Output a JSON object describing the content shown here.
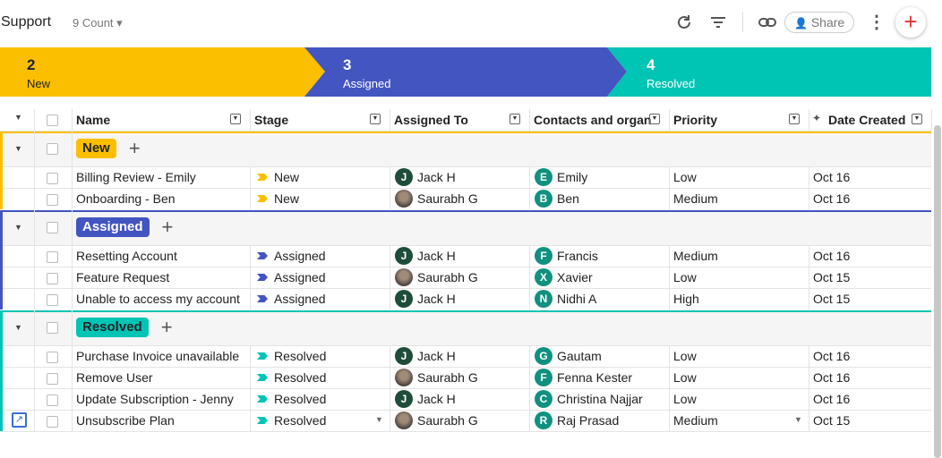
{
  "header": {
    "title": "Support",
    "count": "9 Count",
    "share": "Share"
  },
  "pipeline": [
    {
      "count": 2,
      "label": "New",
      "color": "#fbbf00"
    },
    {
      "count": 3,
      "label": "Assigned",
      "color": "#4355c0"
    },
    {
      "count": 4,
      "label": "Resolved",
      "color": "#00c4b4"
    }
  ],
  "columns": [
    "Name",
    "Stage",
    "Assigned To",
    "Contacts and organizations",
    "Priority",
    "Date Created"
  ],
  "groups": [
    {
      "label": "New",
      "color": "#fbbf00",
      "text_color": "#222",
      "rows": [
        {
          "name": "Billing Review - Emily",
          "stage": "New",
          "assignee": {
            "initial": "J",
            "name": "Jack H"
          },
          "contact": {
            "initial": "E",
            "name": "Emily"
          },
          "priority": "Low",
          "date": "Oct 16"
        },
        {
          "name": "Onboarding - Ben",
          "stage": "New",
          "assignee": {
            "name": "Saurabh G"
          },
          "contact": {
            "initial": "B",
            "name": "Ben"
          },
          "priority": "Medium",
          "date": "Oct 16"
        }
      ]
    },
    {
      "label": "Assigned",
      "color": "#4355c0",
      "text_color": "#fff",
      "rows": [
        {
          "name": "Resetting Account",
          "stage": "Assigned",
          "assignee": {
            "initial": "J",
            "name": "Jack H"
          },
          "contact": {
            "initial": "F",
            "name": "Francis"
          },
          "priority": "Medium",
          "date": "Oct 16"
        },
        {
          "name": "Feature Request",
          "stage": "Assigned",
          "assignee": {
            "name": "Saurabh G"
          },
          "contact": {
            "initial": "X",
            "name": "Xavier"
          },
          "priority": "Low",
          "date": "Oct 15"
        },
        {
          "name": "Unable to access my account",
          "stage": "Assigned",
          "assignee": {
            "initial": "J",
            "name": "Jack H"
          },
          "contact": {
            "initial": "N",
            "name": "Nidhi A"
          },
          "priority": "High",
          "date": "Oct 15"
        }
      ]
    },
    {
      "label": "Resolved",
      "color": "#00c4b4",
      "text_color": "#222",
      "rows": [
        {
          "name": "Purchase Invoice unavailable",
          "stage": "Resolved",
          "assignee": {
            "initial": "J",
            "name": "Jack H"
          },
          "contact": {
            "initial": "G",
            "name": "Gautam"
          },
          "priority": "Low",
          "date": "Oct 16"
        },
        {
          "name": "Remove User",
          "stage": "Resolved",
          "assignee": {
            "name": "Saurabh G"
          },
          "contact": {
            "initial": "F",
            "name": "Fenna Kester"
          },
          "priority": "Low",
          "date": "Oct 16"
        },
        {
          "name": "Update Subscription - Jenny",
          "stage": "Resolved",
          "assignee": {
            "initial": "J",
            "name": "Jack H"
          },
          "contact": {
            "initial": "C",
            "name": "Christina Najjar"
          },
          "priority": "Low",
          "date": "Oct 16"
        },
        {
          "name": "Unsubscribe Plan",
          "stage": "Resolved",
          "assignee": {
            "name": "Saurabh G"
          },
          "contact": {
            "initial": "R",
            "name": "Raj Prasad"
          },
          "priority": "Medium",
          "date": "Oct 15"
        }
      ]
    }
  ]
}
